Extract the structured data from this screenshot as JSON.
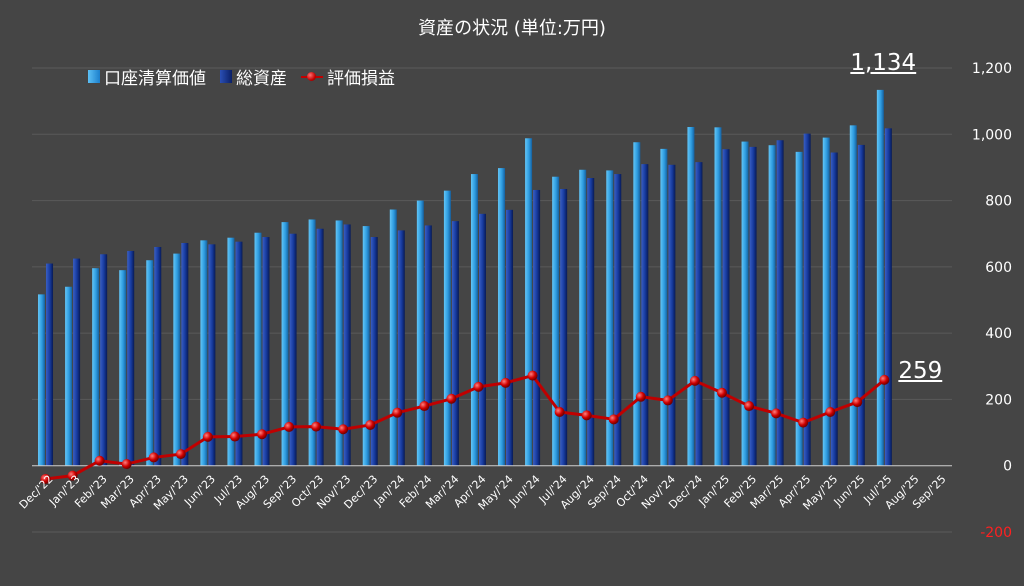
{
  "chart_data": {
    "type": "bar",
    "title": "資産の状況 (単位:万円)",
    "categories": [
      "Dec/'22",
      "Jan/'23",
      "Feb/'23",
      "Mar/'23",
      "Apr/'23",
      "May/'23",
      "Jun/'23",
      "Jul/'23",
      "Aug/'23",
      "Sep/'23",
      "Oct/'23",
      "Nov/'23",
      "Dec/'23",
      "Jan/'24",
      "Feb/'24",
      "Mar/'24",
      "Apr/'24",
      "May/'24",
      "Jun/'24",
      "Jul/'24",
      "Aug/'24",
      "Sep/'24",
      "Oct/'24",
      "Nov/'24",
      "Dec/'24",
      "Jan/'25",
      "Feb/'25",
      "Mar/'25",
      "Apr/'25",
      "May/'25",
      "Jun/'25",
      "Jul/'25",
      "Aug/'25",
      "Sep/'25"
    ],
    "series": [
      {
        "name": "口座清算価値",
        "type": "bar",
        "color": "#2e9ce0",
        "values": [
          517,
          540,
          596,
          590,
          620,
          640,
          680,
          688,
          703,
          735,
          743,
          740,
          723,
          773,
          800,
          830,
          880,
          898,
          988,
          872,
          893,
          891,
          976,
          956,
          1022,
          1021,
          978,
          967,
          947,
          990,
          1027,
          1134,
          null,
          null
        ]
      },
      {
        "name": "総資産",
        "type": "bar",
        "color": "#0f2f8a",
        "values": [
          610,
          625,
          638,
          648,
          660,
          672,
          668,
          676,
          690,
          700,
          715,
          728,
          690,
          710,
          725,
          738,
          760,
          772,
          832,
          835,
          868,
          880,
          910,
          908,
          916,
          955,
          962,
          982,
          1002,
          945,
          968,
          1018,
          null,
          null
        ]
      },
      {
        "name": "評価損益",
        "type": "line",
        "color": "#c00000",
        "values": [
          -40,
          -30,
          15,
          5,
          25,
          35,
          87,
          88,
          95,
          117,
          118,
          110,
          123,
          160,
          180,
          202,
          238,
          250,
          272,
          162,
          152,
          140,
          208,
          197,
          256,
          220,
          180,
          158,
          130,
          162,
          192,
          259,
          null,
          null
        ]
      }
    ],
    "ylim": [
      -200,
      1200
    ],
    "yticks": [
      -200,
      0,
      200,
      400,
      600,
      800,
      1000,
      1200
    ],
    "ytick_labels": [
      "-200",
      "0",
      "200",
      "400",
      "600",
      "800",
      "1,000",
      "1,200"
    ],
    "grid": true,
    "legend_placement": "top-left",
    "annotations": [
      {
        "text": "1,134",
        "series": "口座清算価値",
        "category": "Jul/'25"
      },
      {
        "text": "259",
        "series": "評価損益",
        "category": "Jul/'25"
      }
    ]
  }
}
